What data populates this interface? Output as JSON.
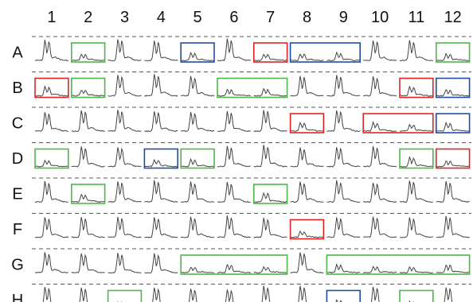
{
  "plate": {
    "columns": [
      "1",
      "2",
      "3",
      "4",
      "5",
      "6",
      "7",
      "8",
      "9",
      "10",
      "11",
      "12"
    ],
    "rows": [
      "A",
      "B",
      "C",
      "D",
      "E",
      "F",
      "G",
      "H"
    ],
    "box_colors": {
      "green": "#4db848",
      "red": "#e02424",
      "blue": "#1f4ea1"
    },
    "highlights": [
      {
        "row": "A",
        "col_start": 2,
        "col_end": 2,
        "color": "green"
      },
      {
        "row": "A",
        "col_start": 5,
        "col_end": 5,
        "color": "blue"
      },
      {
        "row": "A",
        "col_start": 7,
        "col_end": 7,
        "color": "red"
      },
      {
        "row": "A",
        "col_start": 8,
        "col_end": 9,
        "color": "blue"
      },
      {
        "row": "A",
        "col_start": 12,
        "col_end": 12,
        "color": "green"
      },
      {
        "row": "B",
        "col_start": 1,
        "col_end": 1,
        "color": "red"
      },
      {
        "row": "B",
        "col_start": 2,
        "col_end": 2,
        "color": "green"
      },
      {
        "row": "B",
        "col_start": 6,
        "col_end": 7,
        "color": "green"
      },
      {
        "row": "B",
        "col_start": 11,
        "col_end": 11,
        "color": "red"
      },
      {
        "row": "B",
        "col_start": 12,
        "col_end": 12,
        "color": "blue"
      },
      {
        "row": "C",
        "col_start": 8,
        "col_end": 8,
        "color": "red"
      },
      {
        "row": "C",
        "col_start": 10,
        "col_end": 11,
        "color": "red"
      },
      {
        "row": "C",
        "col_start": 12,
        "col_end": 12,
        "color": "blue"
      },
      {
        "row": "D",
        "col_start": 1,
        "col_end": 1,
        "color": "green"
      },
      {
        "row": "D",
        "col_start": 4,
        "col_end": 4,
        "color": "blue"
      },
      {
        "row": "D",
        "col_start": 5,
        "col_end": 5,
        "color": "green"
      },
      {
        "row": "D",
        "col_start": 11,
        "col_end": 11,
        "color": "green"
      },
      {
        "row": "D",
        "col_start": 12,
        "col_end": 12,
        "color": "red"
      },
      {
        "row": "E",
        "col_start": 2,
        "col_end": 2,
        "color": "green"
      },
      {
        "row": "E",
        "col_start": 7,
        "col_end": 7,
        "color": "green"
      },
      {
        "row": "F",
        "col_start": 8,
        "col_end": 8,
        "color": "red"
      },
      {
        "row": "G",
        "col_start": 5,
        "col_end": 7,
        "color": "green"
      },
      {
        "row": "G",
        "col_start": 9,
        "col_end": 12,
        "color": "green"
      },
      {
        "row": "H",
        "col_start": 3,
        "col_end": 3,
        "color": "green"
      },
      {
        "row": "H",
        "col_start": 9,
        "col_end": 9,
        "color": "blue"
      },
      {
        "row": "H",
        "col_start": 11,
        "col_end": 11,
        "color": "green"
      }
    ]
  }
}
